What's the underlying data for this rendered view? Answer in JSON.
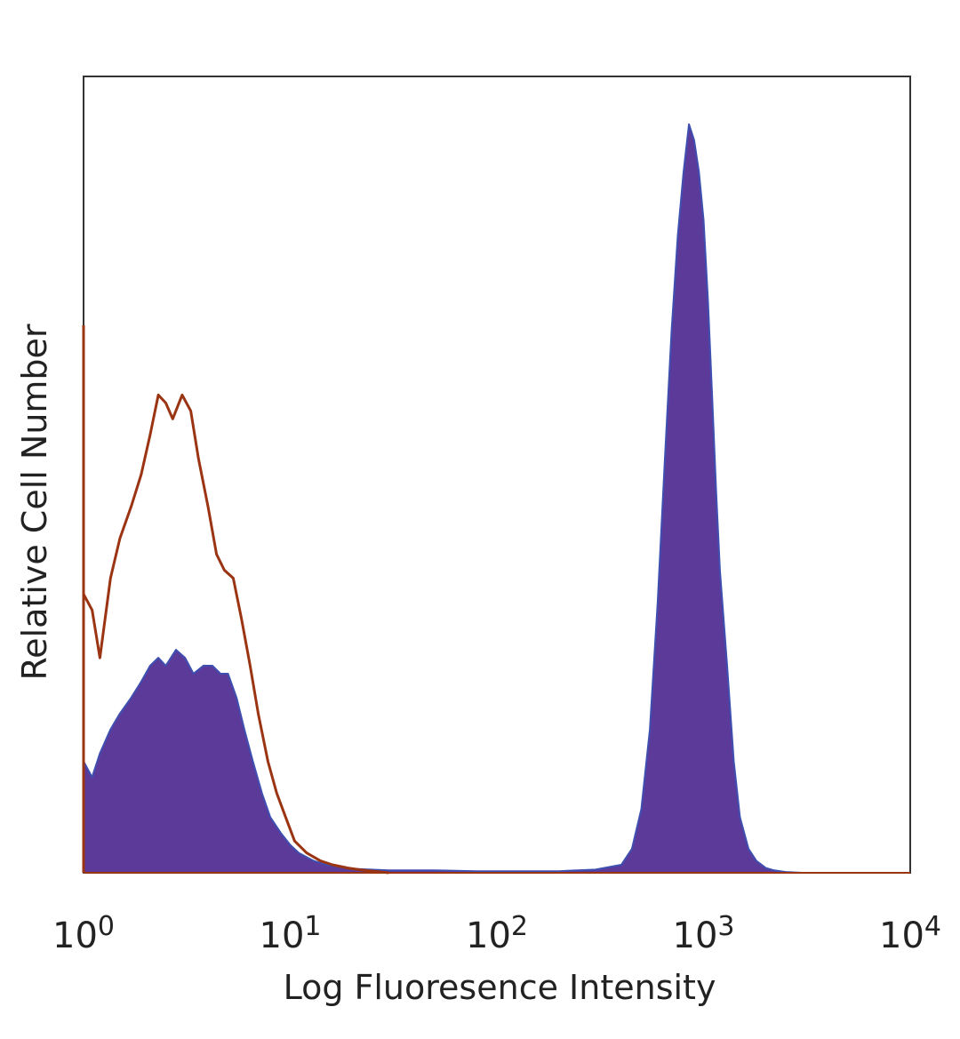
{
  "chart_data": {
    "type": "area",
    "title": "",
    "xlabel": "Log Fluoresence Intensity",
    "ylabel": "Relative Cell Number",
    "xscale": "log",
    "xlim": [
      1,
      10000
    ],
    "ylim": [
      0,
      100
    ],
    "grid": false,
    "legend": "none",
    "x_ticks": [
      {
        "base": "10",
        "exp": "0"
      },
      {
        "base": "10",
        "exp": "1"
      },
      {
        "base": "10",
        "exp": "2"
      },
      {
        "base": "10",
        "exp": "3"
      },
      {
        "base": "10",
        "exp": "4"
      }
    ],
    "colors": {
      "isotype_outline": "#9a3412",
      "stained_fill": "#5b3a9a",
      "stained_edge": "#3f4fb0",
      "frame": "#333333"
    },
    "series": [
      {
        "style": "outline",
        "x": [
          1.0,
          1.1,
          1.2,
          1.35,
          1.5,
          1.7,
          1.9,
          2.1,
          2.3,
          2.5,
          2.7,
          3.0,
          3.3,
          3.6,
          4.0,
          4.4,
          4.8,
          5.3,
          5.8,
          6.4,
          7.0,
          7.8,
          8.6,
          9.5,
          10.5,
          12,
          14,
          16,
          19,
          23,
          30
        ],
        "values": [
          35,
          33,
          27,
          37,
          42,
          46,
          50,
          55,
          60,
          59,
          57,
          60,
          58,
          52,
          46,
          40,
          38,
          37,
          32,
          26,
          20,
          14,
          10,
          7,
          4,
          2.5,
          1.5,
          1,
          0.6,
          0.3,
          0
        ]
      },
      {
        "style": "filled",
        "x": [
          1.0,
          1.1,
          1.2,
          1.35,
          1.5,
          1.7,
          1.9,
          2.1,
          2.3,
          2.5,
          2.8,
          3.1,
          3.4,
          3.8,
          4.2,
          4.6,
          5.0,
          5.5,
          6.0,
          6.6,
          7.3,
          8.0,
          9.0,
          10,
          11,
          13,
          15,
          20,
          30,
          50,
          80,
          120,
          200,
          300,
          400,
          450,
          500,
          550,
          600,
          650,
          700,
          750,
          800,
          850,
          900,
          950,
          1000,
          1050,
          1100,
          1150,
          1200,
          1300,
          1400,
          1500,
          1650,
          1800,
          2000,
          2200,
          2500,
          3000
        ],
        "values": [
          14,
          12,
          15,
          18,
          20,
          22,
          24,
          26,
          27,
          26,
          28,
          27,
          25,
          26,
          26,
          25,
          25,
          22,
          18,
          14,
          10,
          7,
          5,
          3.5,
          2.5,
          1.5,
          1,
          0.5,
          0.3,
          0.3,
          0.2,
          0.2,
          0.2,
          0.4,
          1,
          3,
          8,
          18,
          34,
          52,
          68,
          80,
          88,
          94,
          92,
          88,
          82,
          72,
          60,
          48,
          38,
          26,
          14,
          7,
          3,
          1.5,
          0.6,
          0.3,
          0.1,
          0
        ]
      }
    ]
  }
}
